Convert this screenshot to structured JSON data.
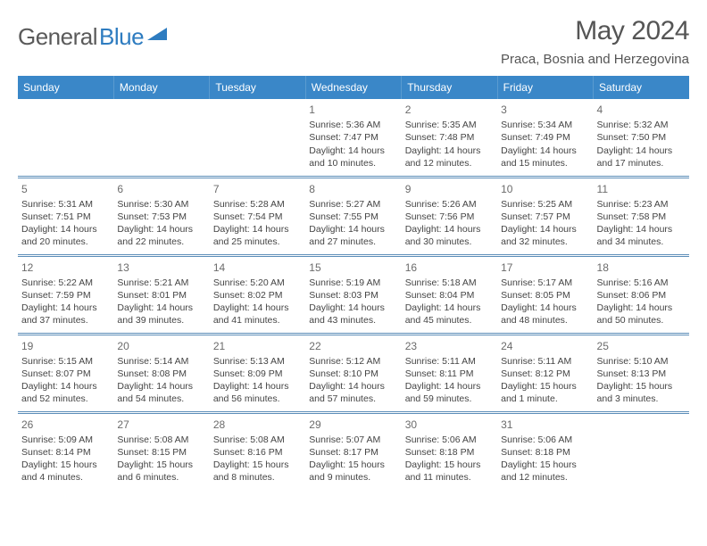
{
  "logo": {
    "part1": "General",
    "part2": "Blue"
  },
  "title": "May 2024",
  "location": "Praca, Bosnia and Herzegovina",
  "colors": {
    "header_bg": "#3a87c8",
    "header_text": "#ffffff",
    "separator": "#5b8db8",
    "body_text": "#444444",
    "daynum": "#6b6b6b",
    "title_text": "#555555",
    "logo_gray": "#5a5a5a",
    "logo_blue": "#2e7cc0",
    "page_bg": "#ffffff"
  },
  "columns": [
    "Sunday",
    "Monday",
    "Tuesday",
    "Wednesday",
    "Thursday",
    "Friday",
    "Saturday"
  ],
  "weeks": [
    [
      null,
      null,
      null,
      {
        "n": "1",
        "sr": "5:36 AM",
        "ss": "7:47 PM",
        "d1": "Daylight: 14 hours",
        "d2": "and 10 minutes."
      },
      {
        "n": "2",
        "sr": "5:35 AM",
        "ss": "7:48 PM",
        "d1": "Daylight: 14 hours",
        "d2": "and 12 minutes."
      },
      {
        "n": "3",
        "sr": "5:34 AM",
        "ss": "7:49 PM",
        "d1": "Daylight: 14 hours",
        "d2": "and 15 minutes."
      },
      {
        "n": "4",
        "sr": "5:32 AM",
        "ss": "7:50 PM",
        "d1": "Daylight: 14 hours",
        "d2": "and 17 minutes."
      }
    ],
    [
      {
        "n": "5",
        "sr": "5:31 AM",
        "ss": "7:51 PM",
        "d1": "Daylight: 14 hours",
        "d2": "and 20 minutes."
      },
      {
        "n": "6",
        "sr": "5:30 AM",
        "ss": "7:53 PM",
        "d1": "Daylight: 14 hours",
        "d2": "and 22 minutes."
      },
      {
        "n": "7",
        "sr": "5:28 AM",
        "ss": "7:54 PM",
        "d1": "Daylight: 14 hours",
        "d2": "and 25 minutes."
      },
      {
        "n": "8",
        "sr": "5:27 AM",
        "ss": "7:55 PM",
        "d1": "Daylight: 14 hours",
        "d2": "and 27 minutes."
      },
      {
        "n": "9",
        "sr": "5:26 AM",
        "ss": "7:56 PM",
        "d1": "Daylight: 14 hours",
        "d2": "and 30 minutes."
      },
      {
        "n": "10",
        "sr": "5:25 AM",
        "ss": "7:57 PM",
        "d1": "Daylight: 14 hours",
        "d2": "and 32 minutes."
      },
      {
        "n": "11",
        "sr": "5:23 AM",
        "ss": "7:58 PM",
        "d1": "Daylight: 14 hours",
        "d2": "and 34 minutes."
      }
    ],
    [
      {
        "n": "12",
        "sr": "5:22 AM",
        "ss": "7:59 PM",
        "d1": "Daylight: 14 hours",
        "d2": "and 37 minutes."
      },
      {
        "n": "13",
        "sr": "5:21 AM",
        "ss": "8:01 PM",
        "d1": "Daylight: 14 hours",
        "d2": "and 39 minutes."
      },
      {
        "n": "14",
        "sr": "5:20 AM",
        "ss": "8:02 PM",
        "d1": "Daylight: 14 hours",
        "d2": "and 41 minutes."
      },
      {
        "n": "15",
        "sr": "5:19 AM",
        "ss": "8:03 PM",
        "d1": "Daylight: 14 hours",
        "d2": "and 43 minutes."
      },
      {
        "n": "16",
        "sr": "5:18 AM",
        "ss": "8:04 PM",
        "d1": "Daylight: 14 hours",
        "d2": "and 45 minutes."
      },
      {
        "n": "17",
        "sr": "5:17 AM",
        "ss": "8:05 PM",
        "d1": "Daylight: 14 hours",
        "d2": "and 48 minutes."
      },
      {
        "n": "18",
        "sr": "5:16 AM",
        "ss": "8:06 PM",
        "d1": "Daylight: 14 hours",
        "d2": "and 50 minutes."
      }
    ],
    [
      {
        "n": "19",
        "sr": "5:15 AM",
        "ss": "8:07 PM",
        "d1": "Daylight: 14 hours",
        "d2": "and 52 minutes."
      },
      {
        "n": "20",
        "sr": "5:14 AM",
        "ss": "8:08 PM",
        "d1": "Daylight: 14 hours",
        "d2": "and 54 minutes."
      },
      {
        "n": "21",
        "sr": "5:13 AM",
        "ss": "8:09 PM",
        "d1": "Daylight: 14 hours",
        "d2": "and 56 minutes."
      },
      {
        "n": "22",
        "sr": "5:12 AM",
        "ss": "8:10 PM",
        "d1": "Daylight: 14 hours",
        "d2": "and 57 minutes."
      },
      {
        "n": "23",
        "sr": "5:11 AM",
        "ss": "8:11 PM",
        "d1": "Daylight: 14 hours",
        "d2": "and 59 minutes."
      },
      {
        "n": "24",
        "sr": "5:11 AM",
        "ss": "8:12 PM",
        "d1": "Daylight: 15 hours",
        "d2": "and 1 minute."
      },
      {
        "n": "25",
        "sr": "5:10 AM",
        "ss": "8:13 PM",
        "d1": "Daylight: 15 hours",
        "d2": "and 3 minutes."
      }
    ],
    [
      {
        "n": "26",
        "sr": "5:09 AM",
        "ss": "8:14 PM",
        "d1": "Daylight: 15 hours",
        "d2": "and 4 minutes."
      },
      {
        "n": "27",
        "sr": "5:08 AM",
        "ss": "8:15 PM",
        "d1": "Daylight: 15 hours",
        "d2": "and 6 minutes."
      },
      {
        "n": "28",
        "sr": "5:08 AM",
        "ss": "8:16 PM",
        "d1": "Daylight: 15 hours",
        "d2": "and 8 minutes."
      },
      {
        "n": "29",
        "sr": "5:07 AM",
        "ss": "8:17 PM",
        "d1": "Daylight: 15 hours",
        "d2": "and 9 minutes."
      },
      {
        "n": "30",
        "sr": "5:06 AM",
        "ss": "8:18 PM",
        "d1": "Daylight: 15 hours",
        "d2": "and 11 minutes."
      },
      {
        "n": "31",
        "sr": "5:06 AM",
        "ss": "8:18 PM",
        "d1": "Daylight: 15 hours",
        "d2": "and 12 minutes."
      },
      null
    ]
  ],
  "label_sunrise": "Sunrise: ",
  "label_sunset": "Sunset: "
}
